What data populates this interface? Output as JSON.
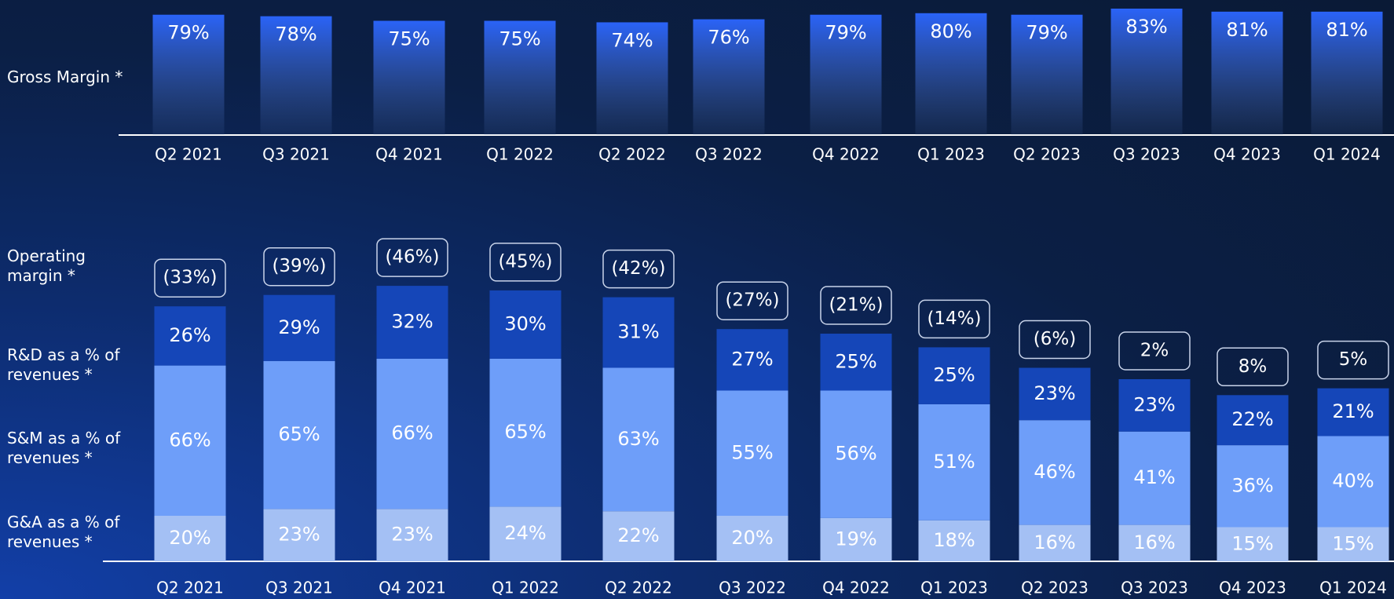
{
  "chart_data": [
    {
      "type": "bar",
      "label": "Gross Margin *",
      "categories": [
        "Q2 2021",
        "Q3 2021",
        "Q4 2021",
        "Q1 2022",
        "Q2 2022",
        "Q3 2022",
        "Q4 2022",
        "Q1 2023",
        "Q2 2023",
        "Q3 2023",
        "Q4 2023",
        "Q1 2024"
      ],
      "values": [
        79,
        78,
        75,
        75,
        74,
        76,
        79,
        80,
        79,
        83,
        81,
        81
      ],
      "value_labels": [
        "79%",
        "78%",
        "75%",
        "75%",
        "74%",
        "76%",
        "79%",
        "80%",
        "79%",
        "83%",
        "81%",
        "81%"
      ],
      "color": "#2a63f7"
    },
    {
      "type": "stacked_bar",
      "categories": [
        "Q2 2021",
        "Q3 2021",
        "Q4 2021",
        "Q1 2022",
        "Q2 2022",
        "Q3 2022",
        "Q4 2022",
        "Q1 2023",
        "Q2 2023",
        "Q3 2023",
        "Q4 2023",
        "Q1 2024"
      ],
      "series": [
        {
          "name": "G&A as a % of revenues *",
          "color": "#a4c0f4",
          "values": [
            20,
            23,
            23,
            24,
            22,
            20,
            19,
            18,
            16,
            16,
            15,
            15
          ],
          "value_labels": [
            "20%",
            "23%",
            "23%",
            "24%",
            "22%",
            "20%",
            "19%",
            "18%",
            "16%",
            "16%",
            "15%",
            "15%"
          ]
        },
        {
          "name": "S&M as a % of revenues *",
          "color": "#6e9ef9",
          "values": [
            66,
            65,
            66,
            65,
            63,
            55,
            56,
            51,
            46,
            41,
            36,
            40
          ],
          "value_labels": [
            "66%",
            "65%",
            "66%",
            "65%",
            "63%",
            "55%",
            "56%",
            "51%",
            "46%",
            "41%",
            "36%",
            "40%"
          ]
        },
        {
          "name": "R&D as a % of revenues *",
          "color": "#1546b8",
          "values": [
            26,
            29,
            32,
            30,
            31,
            27,
            25,
            25,
            23,
            23,
            22,
            21
          ],
          "value_labels": [
            "26%",
            "29%",
            "32%",
            "30%",
            "31%",
            "27%",
            "25%",
            "25%",
            "23%",
            "23%",
            "22%",
            "21%"
          ]
        }
      ],
      "annotation_series": {
        "name": "Operating margin *",
        "values": [
          -33,
          -39,
          -46,
          -45,
          -42,
          -27,
          -21,
          -14,
          -6,
          2,
          8,
          5
        ],
        "value_labels": [
          "(33%)",
          "(39%)",
          "(46%)",
          "(45%)",
          "(42%)",
          "(27%)",
          "(21%)",
          "(14%)",
          "(6%)",
          "2%",
          "8%",
          "5%"
        ]
      }
    }
  ]
}
